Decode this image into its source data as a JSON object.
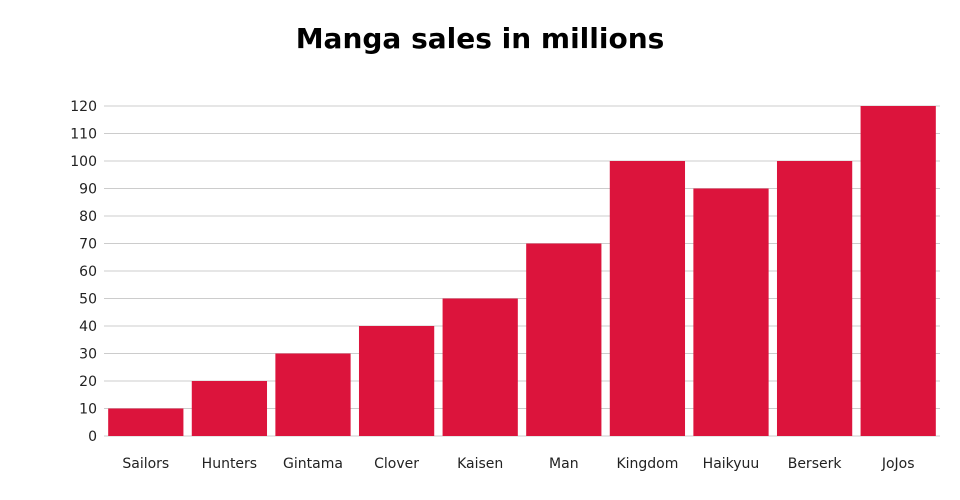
{
  "chart_data": {
    "type": "bar",
    "title": "Manga sales in millions",
    "xlabel": "",
    "ylabel": "",
    "categories": [
      "Sailors",
      "Hunters",
      "Gintama",
      "Clover",
      "Kaisen",
      "Man",
      "Kingdom",
      "Haikyuu",
      "Berserk",
      "JoJos"
    ],
    "values": [
      10,
      20,
      30,
      40,
      50,
      70,
      100,
      90,
      100,
      120
    ],
    "ylim": [
      0,
      120
    ],
    "yticks": [
      "0",
      "10",
      "20",
      "30",
      "40",
      "50",
      "60",
      "70",
      "80",
      "90",
      "100",
      "110",
      "120"
    ],
    "grid": true,
    "legend": "none",
    "bar_color": "#dc143c",
    "grid_color": "#cccccc"
  }
}
